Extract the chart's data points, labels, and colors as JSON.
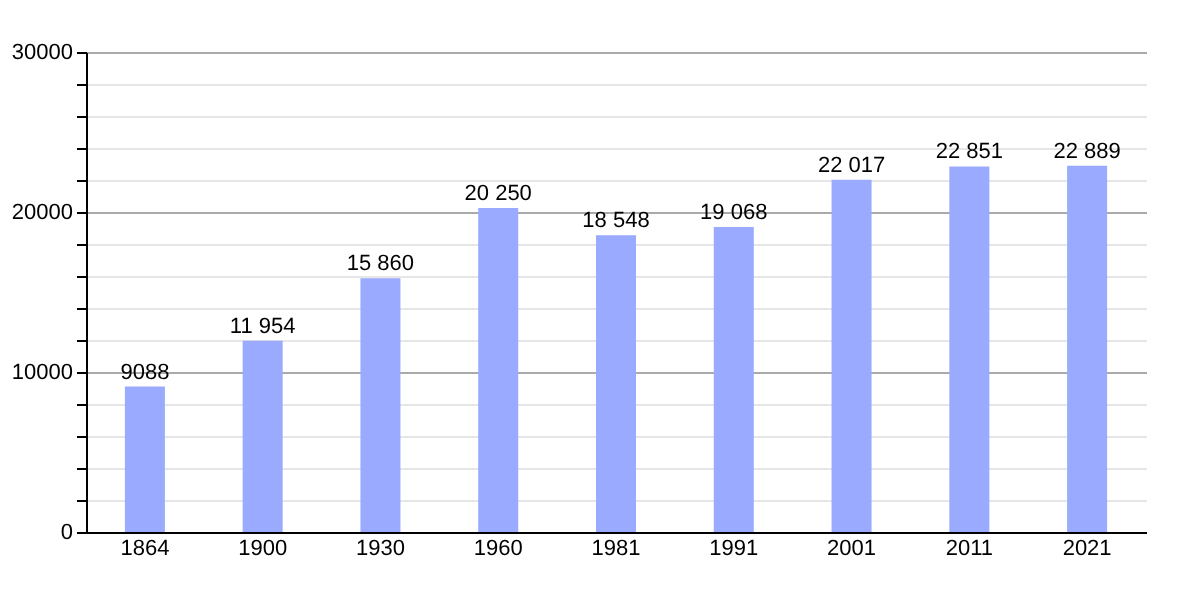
{
  "chart_data": {
    "type": "bar",
    "categories": [
      "1864",
      "1900",
      "1930",
      "1960",
      "1981",
      "1991",
      "2001",
      "2011",
      "2021"
    ],
    "values": [
      9088,
      11954,
      15860,
      20250,
      18548,
      19068,
      22017,
      22851,
      22889
    ],
    "value_labels": [
      "9088",
      "11 954",
      "15 860",
      "20 250",
      "18 548",
      "19 068",
      "22 017",
      "22 851",
      "22 889"
    ],
    "color": "#99aaff",
    "ylim": [
      0,
      30000
    ],
    "yticks": [
      0,
      {
        "value": 2000,
        "label": null
      },
      {
        "value": 4000,
        "label": null
      },
      {
        "value": 6000,
        "label": null
      },
      {
        "value": 8000,
        "label": null
      },
      10000,
      {
        "value": 12000,
        "label": null
      },
      {
        "value": 14000,
        "label": null
      },
      {
        "value": 16000,
        "label": null
      },
      {
        "value": 18000,
        "label": null
      },
      20000,
      {
        "value": 22000,
        "label": null
      },
      {
        "value": 24000,
        "label": null
      },
      {
        "value": 26000,
        "label": null
      },
      {
        "value": 28000,
        "label": null
      },
      30000
    ],
    "grid": "y"
  }
}
